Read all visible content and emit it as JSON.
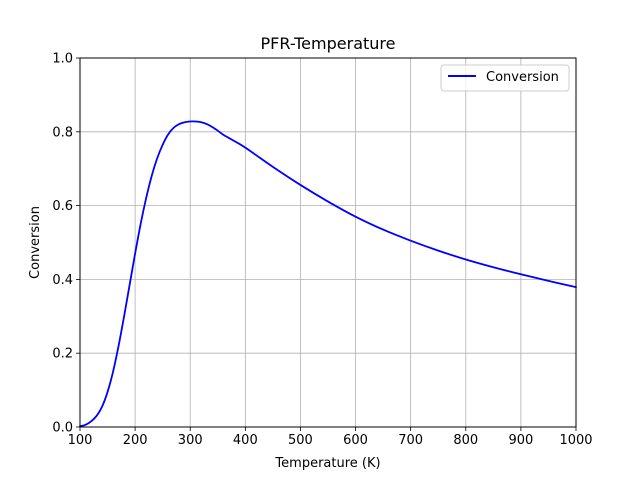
{
  "chart_data": {
    "type": "line",
    "title": "PFR-Temperature",
    "xlabel": "Temperature (K)",
    "ylabel": "Conversion",
    "xlim": [
      100,
      1000
    ],
    "ylim": [
      0.0,
      1.0
    ],
    "xticks": [
      "100",
      "200",
      "300",
      "400",
      "500",
      "600",
      "700",
      "800",
      "900",
      "1000"
    ],
    "yticks": [
      "0.0",
      "0.2",
      "0.4",
      "0.6",
      "0.8",
      "1.0"
    ],
    "grid": true,
    "legend_position": "top-right",
    "series": [
      {
        "name": "Conversion",
        "color": "#0000ff",
        "x": [
          100,
          110,
          120,
          130,
          140,
          150,
          160,
          170,
          180,
          190,
          200,
          210,
          220,
          230,
          240,
          250,
          260,
          270,
          280,
          290,
          300,
          310,
          320,
          330,
          340,
          350,
          360,
          380,
          400,
          450,
          500,
          550,
          600,
          650,
          700,
          750,
          800,
          850,
          900,
          950,
          1000
        ],
        "y": [
          0.002,
          0.006,
          0.015,
          0.03,
          0.055,
          0.095,
          0.15,
          0.22,
          0.3,
          0.385,
          0.47,
          0.55,
          0.62,
          0.68,
          0.728,
          0.765,
          0.793,
          0.811,
          0.821,
          0.826,
          0.828,
          0.828,
          0.826,
          0.821,
          0.813,
          0.803,
          0.792,
          0.775,
          0.757,
          0.705,
          0.656,
          0.611,
          0.57,
          0.535,
          0.505,
          0.478,
          0.454,
          0.433,
          0.414,
          0.396,
          0.379
        ]
      }
    ]
  }
}
